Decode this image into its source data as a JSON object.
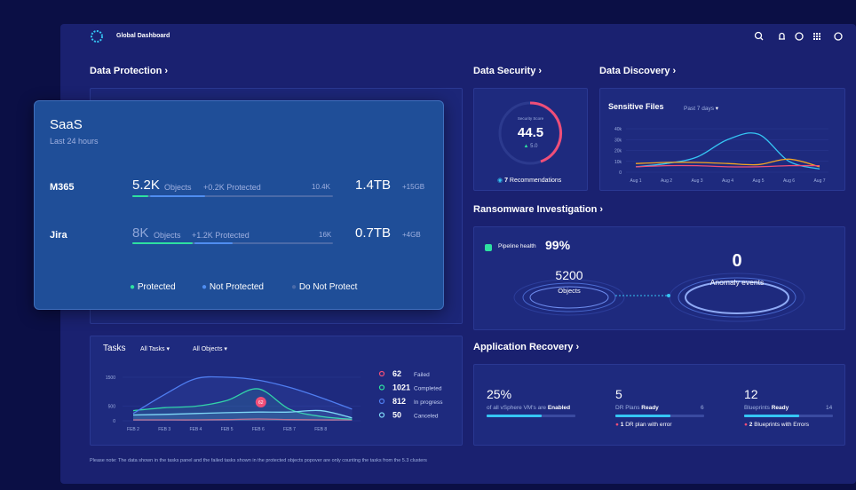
{
  "header": {
    "title": "Global Dashboard"
  },
  "data_protection": {
    "title": "Data Protection",
    "saas": {
      "title": "SaaS",
      "subtitle": "Last 24 hours",
      "rows": [
        {
          "name": "M365",
          "objects": "5.2K",
          "objects_label": "Objects",
          "protected": "+0.2K Protected",
          "total": "10.4K",
          "size": "1.4TB",
          "delta": "+15GB"
        },
        {
          "name": "Jira",
          "objects": "8K",
          "objects_label": "Objects",
          "protected": "+1.2K Protected",
          "total": "16K",
          "size": "0.7TB",
          "delta": "+4GB"
        }
      ],
      "legend": [
        "Protected",
        "Not Protected",
        "Do Not Protect"
      ]
    }
  },
  "tasks": {
    "title": "Tasks",
    "filters": [
      "All Tasks",
      "All Objects"
    ],
    "chart": {
      "type": "line",
      "categories": [
        "FEB 2",
        "FEB 3",
        "FEB 4",
        "FEB 5",
        "FEB 6",
        "FEB 7",
        "FEB 8",
        null
      ],
      "ylim": [
        0,
        1500
      ],
      "yticks": [
        0,
        500,
        1500
      ],
      "series": [
        {
          "name": "Failed",
          "color": "#f04e78",
          "values": [
            30,
            30,
            30,
            40,
            62,
            40,
            30,
            30
          ]
        },
        {
          "name": "Completed",
          "color": "#2ee0a0",
          "values": [
            350,
            450,
            500,
            700,
            1100,
            400,
            150,
            50
          ]
        },
        {
          "name": "In progress",
          "color": "#4f7df0",
          "values": [
            250,
            900,
            1450,
            1500,
            1400,
            1150,
            800,
            400
          ]
        },
        {
          "name": "Canceled",
          "color": "#7fd8f7",
          "values": [
            200,
            220,
            250,
            280,
            300,
            300,
            350,
            100
          ]
        }
      ],
      "annotation": "62"
    },
    "legend_counts": [
      "62",
      "1021",
      "812",
      "50"
    ]
  },
  "note": "Please note: The data shown in the tasks panel and the failed tasks shown in the protected objects popover are only counting the tasks from the 5.3 clusters",
  "data_security": {
    "title": "Data Security",
    "score_label": "Security Score",
    "score": "44.5",
    "change": "5.0",
    "recommendations_count": "7",
    "recommendations_label": "Recommendations"
  },
  "data_discovery": {
    "title": "Data Discovery",
    "card_title": "Sensitive Files",
    "period": "Past 7 days",
    "chart": {
      "type": "line",
      "categories": [
        "Aug 1",
        "Aug 2",
        "Aug 3",
        "Aug 4",
        "Aug 5",
        "Aug 6",
        "Aug 7"
      ],
      "ylim": [
        0,
        40000
      ],
      "yticks": [
        {
          "value": 0,
          "label": "0"
        },
        {
          "value": 10000,
          "label": "10k"
        },
        {
          "value": 20000,
          "label": "20k"
        },
        {
          "value": 30000,
          "label": "30k"
        },
        {
          "value": 40000,
          "label": "40k"
        }
      ],
      "series": [
        {
          "color": "#35c6f4",
          "values": [
            5000,
            8000,
            14000,
            30000,
            35000,
            10000,
            3000
          ]
        },
        {
          "color": "#f5a623",
          "values": [
            8000,
            9000,
            9000,
            8000,
            7000,
            12000,
            5000
          ]
        },
        {
          "color": "#f04e78",
          "values": [
            5000,
            6000,
            6000,
            5000,
            5000,
            6000,
            6000
          ]
        }
      ]
    }
  },
  "ransomware": {
    "title": "Ransomware Investigation",
    "pipeline_label": "Pipeline health",
    "pipeline_value": "99%",
    "objects": "5200",
    "objects_label": "Objects",
    "anomalies": "0",
    "anomalies_label": "Anomaly events"
  },
  "app_recovery": {
    "title": "Application Recovery",
    "vsphere": {
      "value": "25%",
      "label": "of all vSphere VM's are",
      "status": "Enabled"
    },
    "dr_plans": {
      "value": "5",
      "label": "DR Plans",
      "status": "Ready",
      "total": "6",
      "error_count": "1",
      "error_label": "DR plan with error"
    },
    "blueprints": {
      "value": "12",
      "label": "Blueprints",
      "status": "Ready",
      "total": "14",
      "error_count": "2",
      "error_label": "Blueprints with Errors"
    }
  }
}
